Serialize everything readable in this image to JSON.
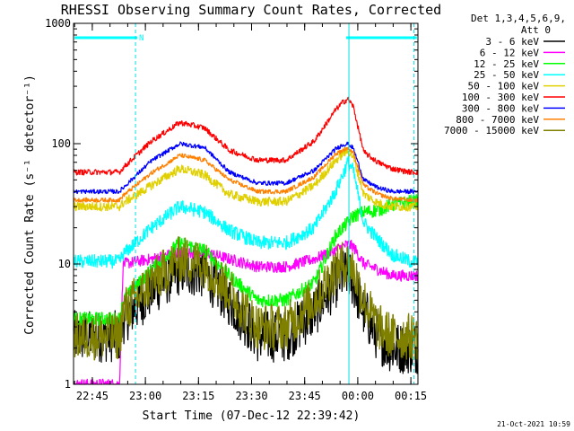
{
  "title": "RHESSI Observing Summary Count Rates, Corrected",
  "xlabel": "Start Time (07-Dec-12 22:39:42)",
  "ylabel": "Corrected Count Rate (s⁻¹ detector⁻¹)",
  "date_stamp": "21-Oct-2021 10:59",
  "legend_header": [
    "Det 1,3,4,5,6,9,",
    "Att 0"
  ],
  "flag_label": "N",
  "colors": {
    "flag_bar": "#00ffff",
    "flag_vline": "#00e0e0"
  },
  "chart_data": {
    "type": "line",
    "title": "RHESSI Observing Summary Count Rates, Corrected",
    "xlabel": "Start Time (07-Dec-12 22:39:42)",
    "ylabel": "Corrected Count Rate (s⁻¹ detector⁻¹)",
    "y_scale": "log",
    "ylim": [
      1,
      1000
    ],
    "y_ticks": [
      1,
      10,
      100,
      1000
    ],
    "y_tick_labels": [
      "1",
      "10",
      "100",
      "1000"
    ],
    "xlim": [
      "22:39:42",
      "00:17:00"
    ],
    "x_ticks": [
      "22:45",
      "23:00",
      "23:15",
      "23:30",
      "23:45",
      "00:00",
      "00:15"
    ],
    "x_ticks_min": [
      5.3,
      20.3,
      35.3,
      50.3,
      65.3,
      80.3,
      95.3
    ],
    "x_span_min": 97.3,
    "legend_position": "right",
    "flag_bars": [
      {
        "label": "N",
        "start_min": 0.3,
        "end_min": 18.0
      },
      {
        "label": "",
        "start_min": 77.0,
        "end_min": 97.0
      }
    ],
    "vlines_min": [
      17.5,
      77.8,
      96.2
    ],
    "x_min": [
      0,
      13,
      14,
      22,
      30,
      37,
      44,
      52,
      60,
      68,
      74,
      76,
      77.5,
      79,
      82,
      86,
      90,
      95,
      97
    ],
    "series": [
      {
        "name": "3 - 6 keV",
        "color": "#000000",
        "values": [
          2.5,
          2.5,
          3.5,
          6,
          9,
          8.5,
          5,
          2.5,
          2.5,
          4,
          7,
          8,
          8.5,
          7,
          4,
          2.5,
          2,
          2,
          2
        ]
      },
      {
        "name": "6 - 12 keV",
        "color": "#ff00ff",
        "values": [
          1,
          1,
          10,
          11,
          12.5,
          12.5,
          11,
          9.5,
          9.5,
          11,
          13,
          14,
          14.5,
          14,
          10,
          9,
          8,
          8,
          8
        ]
      },
      {
        "name": "12 - 25 keV",
        "color": "#00ff00",
        "values": [
          3.5,
          3.5,
          5,
          9,
          15,
          13,
          8,
          5,
          5,
          7,
          17,
          20,
          22,
          25,
          27,
          28,
          31,
          33,
          33
        ]
      },
      {
        "name": "25 - 50 keV",
        "color": "#00ffff",
        "values": [
          10.5,
          10.5,
          12,
          20,
          30,
          27,
          19,
          15,
          15,
          20,
          40,
          55,
          70,
          60,
          22,
          16,
          12,
          10.5,
          10.5
        ]
      },
      {
        "name": "50 - 100 keV",
        "color": "#e0d000",
        "values": [
          30,
          30,
          32,
          45,
          62,
          55,
          38,
          33,
          33,
          45,
          72,
          82,
          87,
          78,
          38,
          32,
          30,
          30,
          30
        ]
      },
      {
        "name": "100 - 300 keV",
        "color": "#ff0000",
        "values": [
          58,
          58,
          63,
          105,
          150,
          135,
          88,
          73,
          73,
          105,
          190,
          220,
          235,
          205,
          85,
          70,
          62,
          58,
          58
        ]
      },
      {
        "name": "300 - 800 keV",
        "color": "#0000ff",
        "values": [
          40,
          40,
          43,
          72,
          100,
          93,
          58,
          47,
          47,
          60,
          90,
          98,
          100,
          92,
          50,
          43,
          40,
          40,
          40
        ]
      },
      {
        "name": "800 - 7000 keV",
        "color": "#ff8000",
        "values": [
          34,
          34,
          37,
          57,
          80,
          73,
          50,
          40,
          40,
          53,
          82,
          88,
          92,
          85,
          45,
          38,
          35,
          34,
          34
        ]
      },
      {
        "name": "7000 - 15000 keV",
        "color": "#808000",
        "values": [
          2.5,
          2.5,
          4,
          7,
          11,
          10,
          6,
          3,
          3,
          5,
          9,
          10,
          10,
          9,
          5,
          3,
          2.5,
          2.5,
          2.5
        ]
      }
    ]
  }
}
